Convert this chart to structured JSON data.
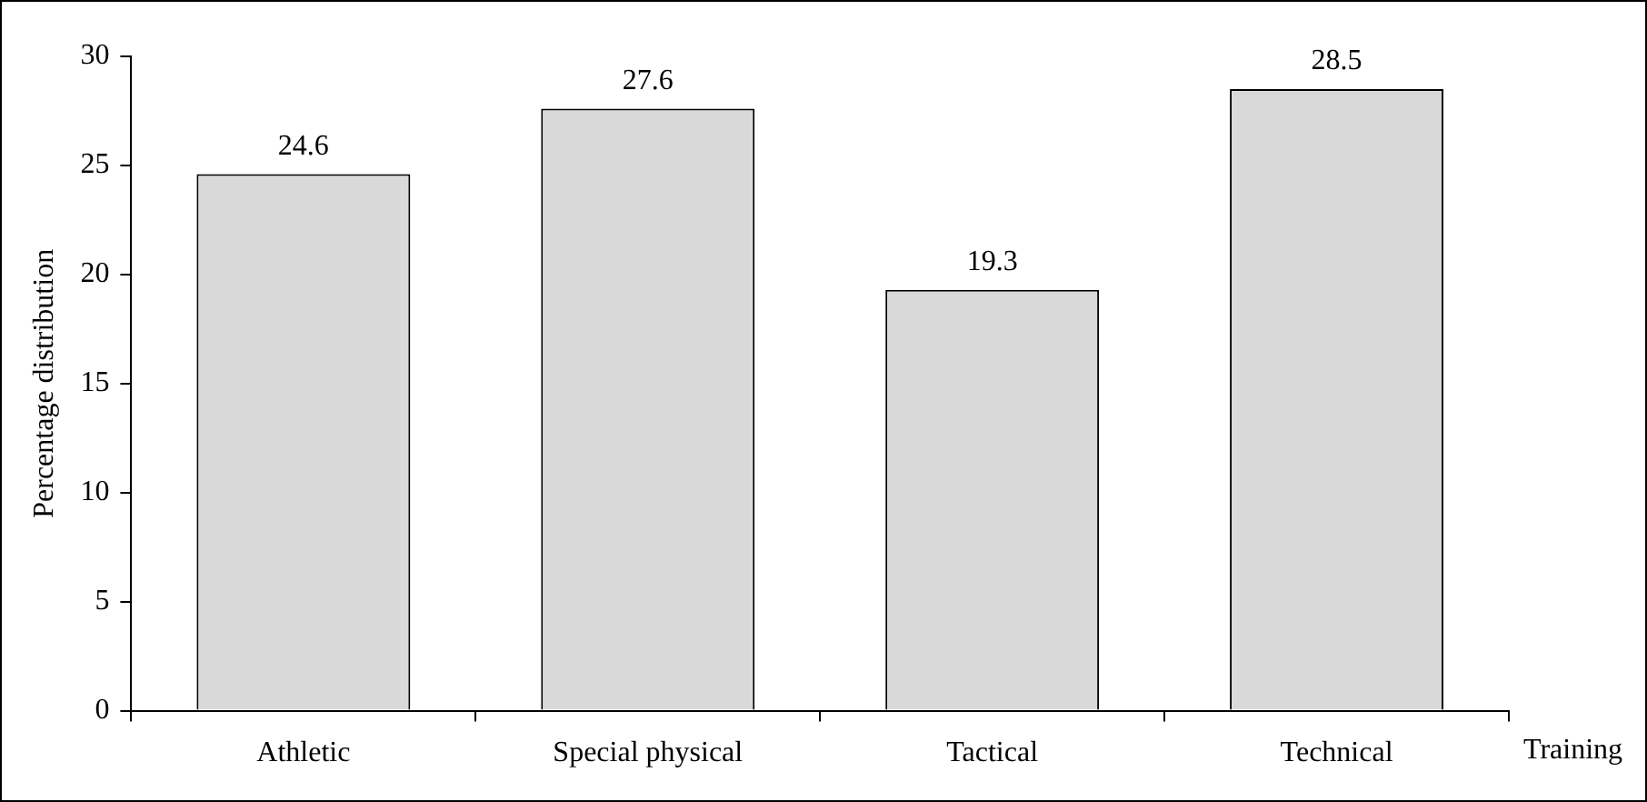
{
  "chart_data": {
    "type": "bar",
    "xlabel": "Training",
    "ylabel": "Percentage distribution",
    "categories": [
      "Athletic",
      "Special physical",
      "Tactical",
      "Technical"
    ],
    "values": [
      24.6,
      27.6,
      19.3,
      28.5
    ],
    "color": "#d9d9d9",
    "ylim": [
      0,
      30
    ],
    "yticks": [
      0,
      5,
      10,
      15,
      20,
      25,
      30
    ],
    "grid": false,
    "legend": false,
    "data_labels": true
  }
}
